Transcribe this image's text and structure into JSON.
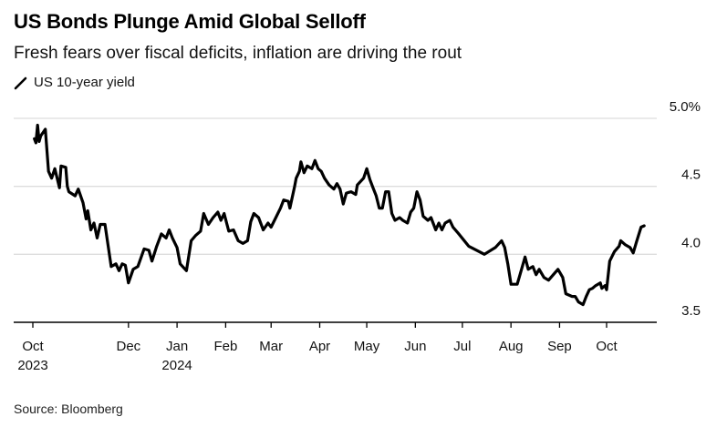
{
  "header": {
    "title": "US Bonds Plunge Amid Global Selloff",
    "subtitle": "Fresh fears over fiscal deficits, inflation are driving the rout"
  },
  "legend": {
    "label": "US 10-year yield",
    "icon": "line-icon"
  },
  "footer": {
    "source": "Source: Bloomberg"
  },
  "colors": {
    "line": "#000000",
    "grid": "#dddddd",
    "axis": "#000000",
    "text": "#111111"
  },
  "chart_data": {
    "type": "line",
    "title": "US Bonds Plunge Amid Global Selloff",
    "subtitle": "Fresh fears over fiscal deficits, inflation are driving the rout",
    "xlabel": "",
    "ylabel": "",
    "y_unit": "%",
    "ylim": [
      3.5,
      5.0
    ],
    "yticks": [
      {
        "value": 5.0,
        "label": "5.0%"
      },
      {
        "value": 4.5,
        "label": "4.5"
      },
      {
        "value": 4.0,
        "label": "4.0"
      },
      {
        "value": 3.5,
        "label": "3.5"
      }
    ],
    "xlim": [
      "2023-09-20",
      "2024-11-20"
    ],
    "xticks": [
      {
        "date": "2023-10-01",
        "label": "Oct",
        "sublabel": "2023"
      },
      {
        "date": "2023-12-01",
        "label": "Dec",
        "sublabel": ""
      },
      {
        "date": "2024-01-01",
        "label": "Jan",
        "sublabel": "2024"
      },
      {
        "date": "2024-02-01",
        "label": "Feb",
        "sublabel": ""
      },
      {
        "date": "2024-03-01",
        "label": "Mar",
        "sublabel": ""
      },
      {
        "date": "2024-04-01",
        "label": "Apr",
        "sublabel": ""
      },
      {
        "date": "2024-05-01",
        "label": "May",
        "sublabel": ""
      },
      {
        "date": "2024-06-01",
        "label": "Jun",
        "sublabel": ""
      },
      {
        "date": "2024-07-01",
        "label": "Jul",
        "sublabel": ""
      },
      {
        "date": "2024-08-01",
        "label": "Aug",
        "sublabel": ""
      },
      {
        "date": "2024-09-01",
        "label": "Sep",
        "sublabel": ""
      },
      {
        "date": "2024-10-01",
        "label": "Oct",
        "sublabel": ""
      }
    ],
    "grid": true,
    "legend_position": "top-left",
    "series": [
      {
        "name": "US 10-year yield",
        "points": [
          [
            "2023-10-02",
            4.85
          ],
          [
            "2023-10-03",
            4.82
          ],
          [
            "2023-10-04",
            4.95
          ],
          [
            "2023-10-05",
            4.83
          ],
          [
            "2023-10-06",
            4.87
          ],
          [
            "2023-10-09",
            4.92
          ],
          [
            "2023-10-11",
            4.61
          ],
          [
            "2023-10-13",
            4.56
          ],
          [
            "2023-10-15",
            4.63
          ],
          [
            "2023-10-18",
            4.49
          ],
          [
            "2023-10-19",
            4.65
          ],
          [
            "2023-10-22",
            4.64
          ],
          [
            "2023-10-23",
            4.5
          ],
          [
            "2023-10-24",
            4.46
          ],
          [
            "2023-10-28",
            4.43
          ],
          [
            "2023-10-30",
            4.48
          ],
          [
            "2023-11-02",
            4.38
          ],
          [
            "2023-11-04",
            4.26
          ],
          [
            "2023-11-05",
            4.32
          ],
          [
            "2023-11-07",
            4.18
          ],
          [
            "2023-11-09",
            4.23
          ],
          [
            "2023-11-11",
            4.12
          ],
          [
            "2023-11-13",
            4.22
          ],
          [
            "2023-11-16",
            4.22
          ],
          [
            "2023-11-20",
            3.91
          ],
          [
            "2023-11-23",
            3.93
          ],
          [
            "2023-11-25",
            3.88
          ],
          [
            "2023-11-27",
            3.93
          ],
          [
            "2023-11-29",
            3.92
          ],
          [
            "2023-12-01",
            3.79
          ],
          [
            "2023-12-04",
            3.89
          ],
          [
            "2023-12-07",
            3.91
          ],
          [
            "2023-12-11",
            4.04
          ],
          [
            "2023-12-14",
            4.03
          ],
          [
            "2023-12-16",
            3.95
          ],
          [
            "2023-12-19",
            4.06
          ],
          [
            "2023-12-22",
            4.15
          ],
          [
            "2023-12-25",
            4.12
          ],
          [
            "2023-12-27",
            4.18
          ],
          [
            "2023-12-29",
            4.12
          ],
          [
            "2024-01-01",
            4.05
          ],
          [
            "2024-01-03",
            3.93
          ],
          [
            "2024-01-07",
            3.88
          ],
          [
            "2024-01-10",
            4.1
          ],
          [
            "2024-01-13",
            4.14
          ],
          [
            "2024-01-16",
            4.17
          ],
          [
            "2024-01-18",
            4.3
          ],
          [
            "2024-01-21",
            4.22
          ],
          [
            "2024-01-24",
            4.27
          ],
          [
            "2024-01-27",
            4.31
          ],
          [
            "2024-01-29",
            4.25
          ],
          [
            "2024-01-31",
            4.3
          ],
          [
            "2024-02-03",
            4.17
          ],
          [
            "2024-02-06",
            4.18
          ],
          [
            "2024-02-09",
            4.1
          ],
          [
            "2024-02-12",
            4.08
          ],
          [
            "2024-02-15",
            4.1
          ],
          [
            "2024-02-17",
            4.24
          ],
          [
            "2024-02-19",
            4.3
          ],
          [
            "2024-02-22",
            4.27
          ],
          [
            "2024-02-25",
            4.18
          ],
          [
            "2024-02-28",
            4.23
          ],
          [
            "2024-03-01",
            4.2
          ],
          [
            "2024-03-04",
            4.27
          ],
          [
            "2024-03-07",
            4.34
          ],
          [
            "2024-03-09",
            4.4
          ],
          [
            "2024-03-12",
            4.39
          ],
          [
            "2024-03-13",
            4.34
          ],
          [
            "2024-03-16",
            4.5
          ],
          [
            "2024-03-17",
            4.56
          ],
          [
            "2024-03-19",
            4.61
          ],
          [
            "2024-03-20",
            4.68
          ],
          [
            "2024-03-22",
            4.6
          ],
          [
            "2024-03-24",
            4.65
          ],
          [
            "2024-03-27",
            4.63
          ],
          [
            "2024-03-29",
            4.69
          ],
          [
            "2024-03-31",
            4.63
          ],
          [
            "2024-04-02",
            4.61
          ],
          [
            "2024-04-04",
            4.56
          ],
          [
            "2024-04-07",
            4.51
          ],
          [
            "2024-04-10",
            4.48
          ],
          [
            "2024-04-12",
            4.52
          ],
          [
            "2024-04-14",
            4.48
          ],
          [
            "2024-04-16",
            4.37
          ],
          [
            "2024-04-18",
            4.45
          ],
          [
            "2024-04-21",
            4.46
          ],
          [
            "2024-04-24",
            4.44
          ],
          [
            "2024-04-25",
            4.51
          ],
          [
            "2024-04-29",
            4.56
          ],
          [
            "2024-05-01",
            4.63
          ],
          [
            "2024-05-03",
            4.55
          ],
          [
            "2024-05-05",
            4.49
          ],
          [
            "2024-05-07",
            4.43
          ],
          [
            "2024-05-09",
            4.34
          ],
          [
            "2024-05-11",
            4.34
          ],
          [
            "2024-05-13",
            4.46
          ],
          [
            "2024-05-15",
            4.46
          ],
          [
            "2024-05-17",
            4.3
          ],
          [
            "2024-05-19",
            4.25
          ],
          [
            "2024-05-22",
            4.27
          ],
          [
            "2024-05-24",
            4.25
          ],
          [
            "2024-05-27",
            4.23
          ],
          [
            "2024-05-29",
            4.31
          ],
          [
            "2024-05-31",
            4.34
          ],
          [
            "2024-06-02",
            4.46
          ],
          [
            "2024-06-04",
            4.4
          ],
          [
            "2024-06-06",
            4.28
          ],
          [
            "2024-06-09",
            4.25
          ],
          [
            "2024-06-11",
            4.27
          ],
          [
            "2024-06-14",
            4.18
          ],
          [
            "2024-06-16",
            4.23
          ],
          [
            "2024-06-18",
            4.18
          ],
          [
            "2024-06-20",
            4.23
          ],
          [
            "2024-06-23",
            4.25
          ],
          [
            "2024-06-25",
            4.2
          ],
          [
            "2024-06-28",
            4.16
          ],
          [
            "2024-07-05",
            4.06
          ],
          [
            "2024-07-15",
            4.0
          ],
          [
            "2024-07-22",
            4.05
          ],
          [
            "2024-07-26",
            4.1
          ],
          [
            "2024-07-28",
            4.05
          ],
          [
            "2024-07-30",
            3.93
          ],
          [
            "2024-08-01",
            3.78
          ],
          [
            "2024-08-05",
            3.78
          ],
          [
            "2024-08-07",
            3.86
          ],
          [
            "2024-08-10",
            3.98
          ],
          [
            "2024-08-12",
            3.89
          ],
          [
            "2024-08-15",
            3.91
          ],
          [
            "2024-08-17",
            3.85
          ],
          [
            "2024-08-19",
            3.89
          ],
          [
            "2024-08-22",
            3.83
          ],
          [
            "2024-08-25",
            3.81
          ],
          [
            "2024-08-28",
            3.85
          ],
          [
            "2024-08-31",
            3.89
          ],
          [
            "2024-09-03",
            3.83
          ],
          [
            "2024-09-05",
            3.71
          ],
          [
            "2024-09-09",
            3.69
          ],
          [
            "2024-09-11",
            3.69
          ],
          [
            "2024-09-13",
            3.65
          ],
          [
            "2024-09-16",
            3.63
          ],
          [
            "2024-09-18",
            3.69
          ],
          [
            "2024-09-20",
            3.74
          ],
          [
            "2024-09-22",
            3.75
          ],
          [
            "2024-09-24",
            3.77
          ],
          [
            "2024-09-27",
            3.79
          ],
          [
            "2024-09-28",
            3.75
          ],
          [
            "2024-09-30",
            3.77
          ],
          [
            "2024-10-01",
            3.74
          ],
          [
            "2024-10-03",
            3.95
          ],
          [
            "2024-10-06",
            4.02
          ],
          [
            "2024-10-09",
            4.06
          ],
          [
            "2024-10-10",
            4.1
          ],
          [
            "2024-10-13",
            4.07
          ],
          [
            "2024-10-16",
            4.05
          ],
          [
            "2024-10-18",
            4.01
          ],
          [
            "2024-10-20",
            4.09
          ],
          [
            "2024-10-23",
            4.2
          ],
          [
            "2024-10-25",
            4.21
          ]
        ]
      }
    ],
    "source": "Source: Bloomberg"
  }
}
